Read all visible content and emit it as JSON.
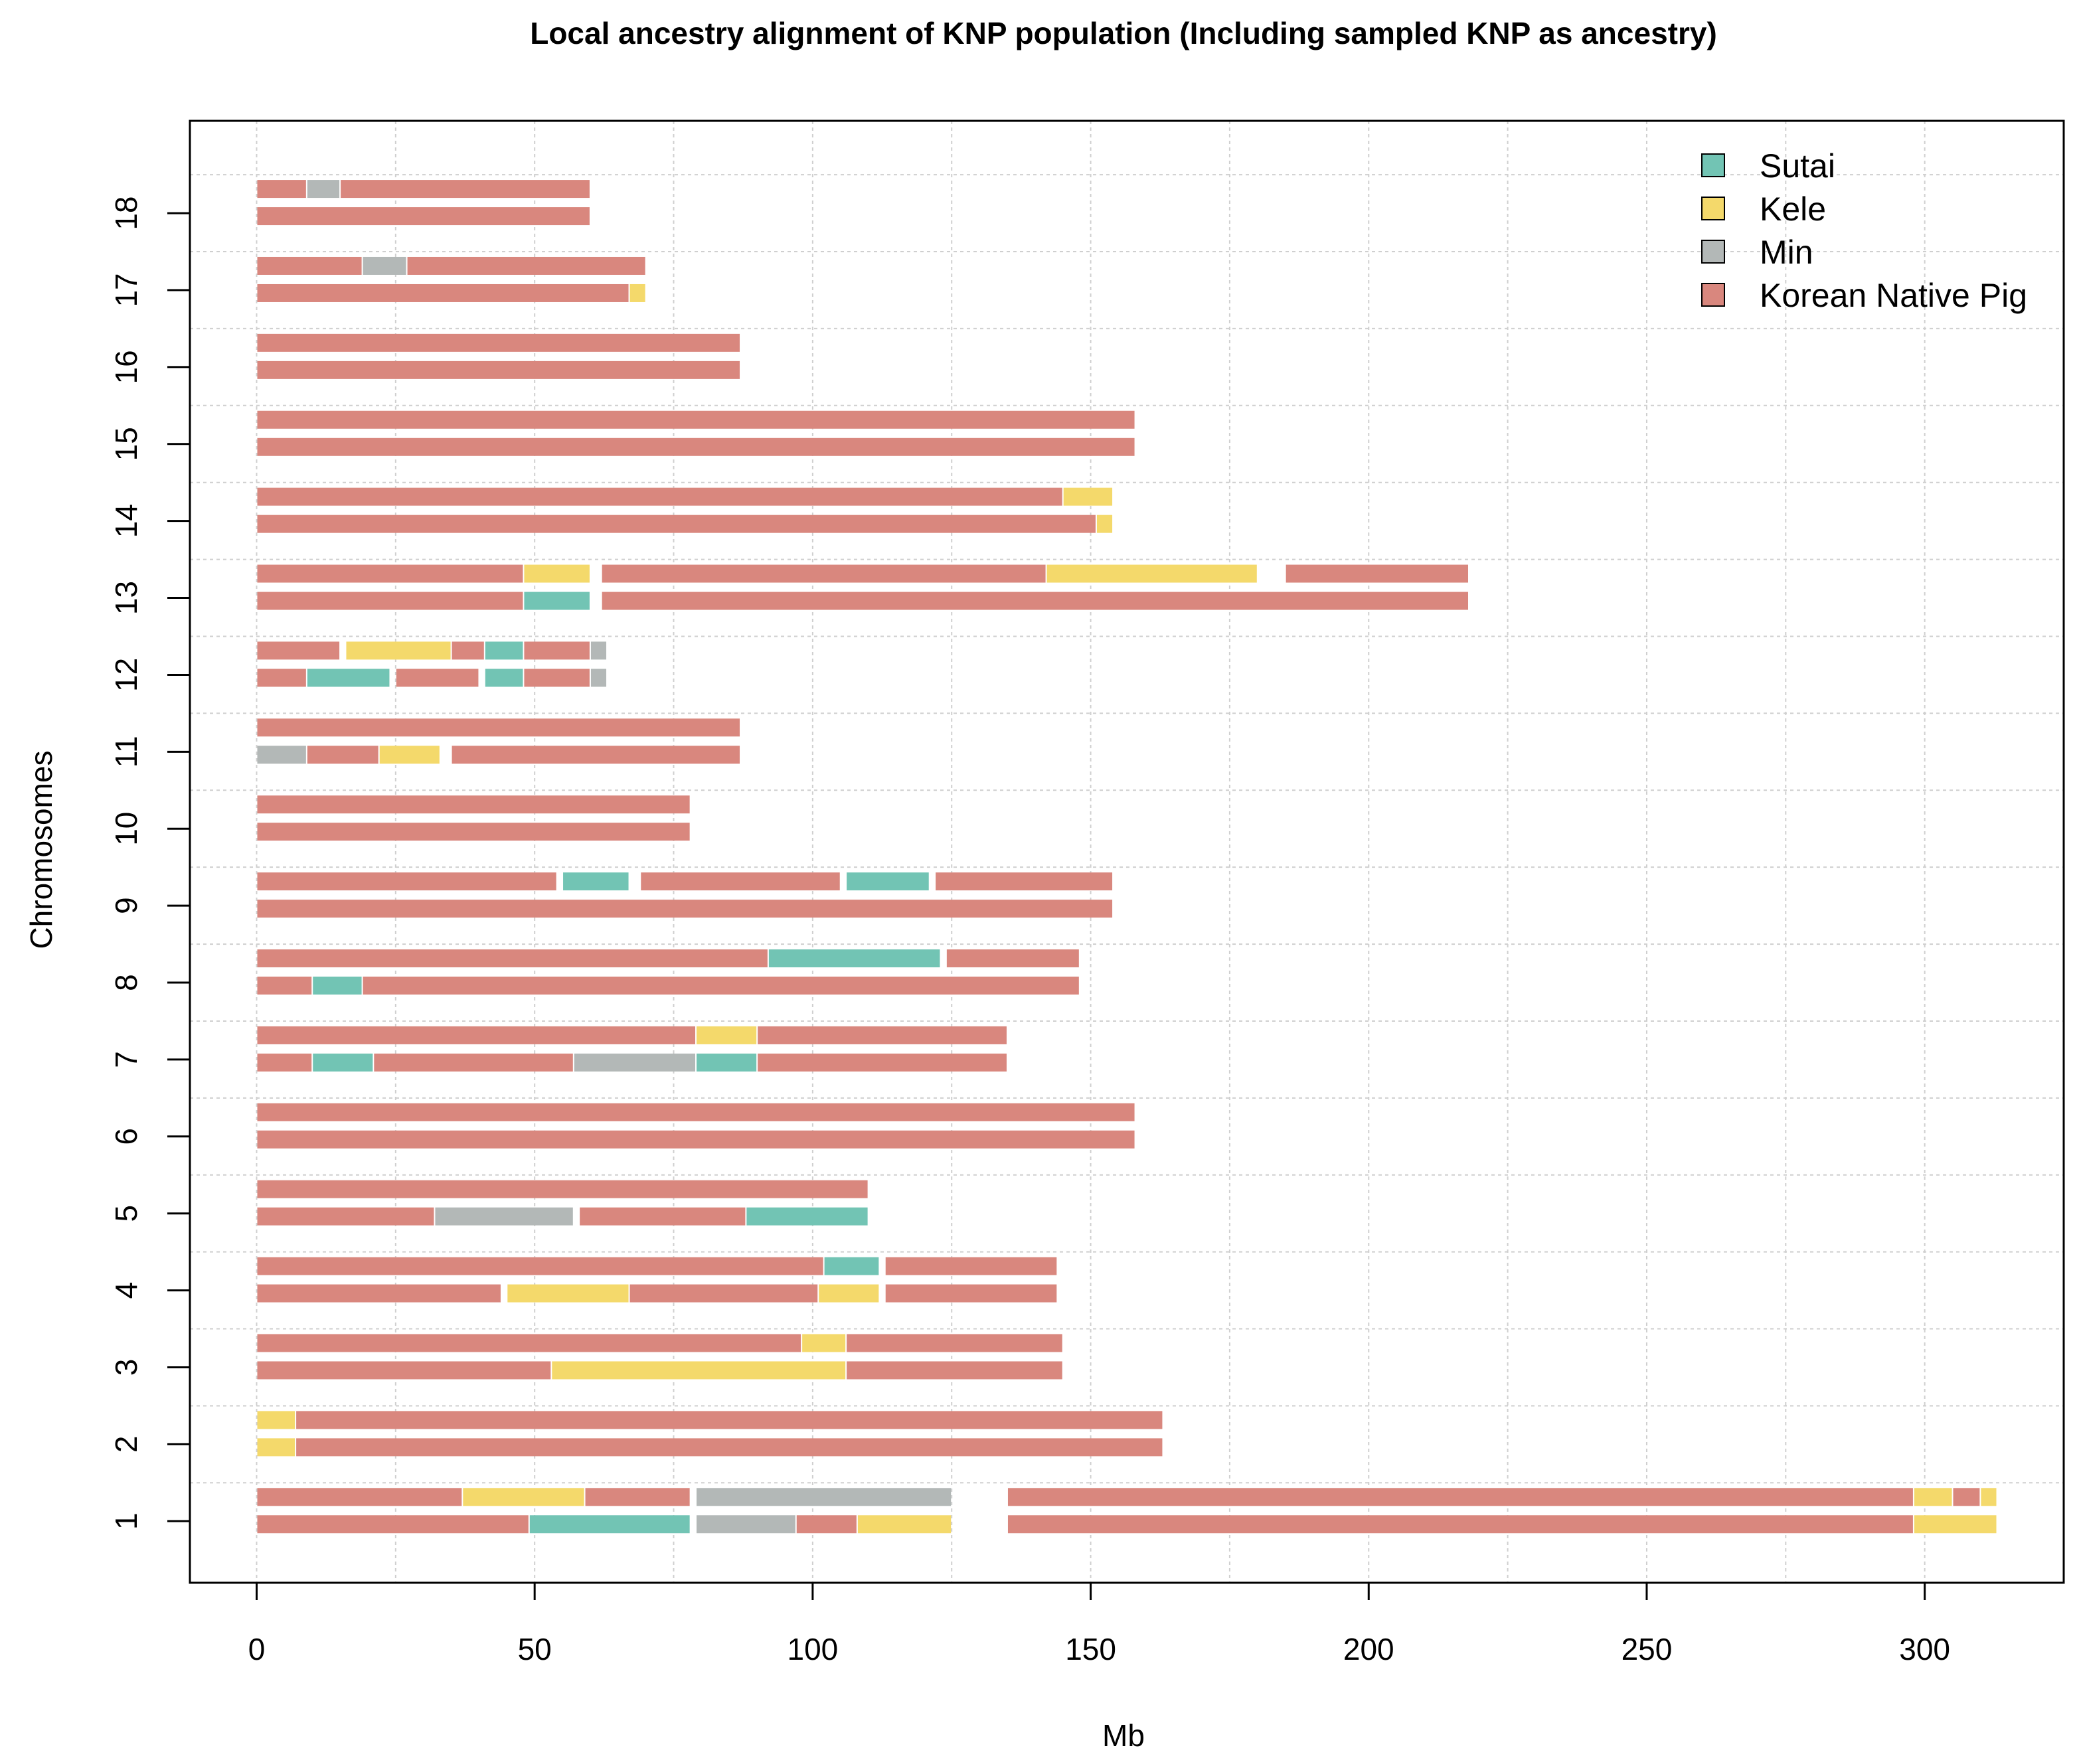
{
  "chart_data": {
    "type": "bar",
    "subtype": "horizontal-segmented-haplotype",
    "title": "Local ancestry alignment of KNP population (Including sampled KNP as ancestry)",
    "xlabel": "Mb",
    "ylabel": "Chromosomes",
    "xlim": [
      -12,
      325
    ],
    "ylim": [
      0.2,
      19.2
    ],
    "xticks": [
      0,
      50,
      100,
      150,
      200,
      250,
      300
    ],
    "yticks": [
      1,
      2,
      3,
      4,
      5,
      6,
      7,
      8,
      9,
      10,
      11,
      12,
      13,
      14,
      15,
      16,
      17,
      18
    ],
    "grid": true,
    "legend_position": "top-right",
    "colors": {
      "Sutai": "#72c4b4",
      "Kele": "#f4d96b",
      "Min": "#b3b8b7",
      "Korean Native Pig": "#d9877e"
    },
    "legend": [
      "Sutai",
      "Kele",
      "Min",
      "Korean Native Pig"
    ],
    "chromosomes": [
      {
        "chr": 1,
        "hap1": [
          [
            0,
            37,
            "Korean Native Pig"
          ],
          [
            37,
            59,
            "Kele"
          ],
          [
            59,
            78,
            "Korean Native Pig"
          ],
          [
            79,
            125,
            "Min"
          ],
          [
            135,
            298,
            "Korean Native Pig"
          ],
          [
            298,
            305,
            "Kele"
          ],
          [
            305,
            310,
            "Korean Native Pig"
          ],
          [
            310,
            313,
            "Kele"
          ]
        ],
        "hap2": [
          [
            0,
            49,
            "Korean Native Pig"
          ],
          [
            49,
            78,
            "Sutai"
          ],
          [
            79,
            97,
            "Min"
          ],
          [
            97,
            108,
            "Korean Native Pig"
          ],
          [
            108,
            125,
            "Kele"
          ],
          [
            135,
            298,
            "Korean Native Pig"
          ],
          [
            298,
            313,
            "Kele"
          ]
        ]
      },
      {
        "chr": 2,
        "hap1": [
          [
            0,
            7,
            "Kele"
          ],
          [
            7,
            163,
            "Korean Native Pig"
          ]
        ],
        "hap2": [
          [
            0,
            7,
            "Kele"
          ],
          [
            7,
            163,
            "Korean Native Pig"
          ]
        ]
      },
      {
        "chr": 3,
        "hap1": [
          [
            0,
            98,
            "Korean Native Pig"
          ],
          [
            98,
            106,
            "Kele"
          ],
          [
            106,
            145,
            "Korean Native Pig"
          ]
        ],
        "hap2": [
          [
            0,
            53,
            "Korean Native Pig"
          ],
          [
            53,
            106,
            "Kele"
          ],
          [
            106,
            145,
            "Korean Native Pig"
          ]
        ]
      },
      {
        "chr": 4,
        "hap1": [
          [
            0,
            102,
            "Korean Native Pig"
          ],
          [
            102,
            112,
            "Sutai"
          ],
          [
            113,
            144,
            "Korean Native Pig"
          ]
        ],
        "hap2": [
          [
            0,
            44,
            "Korean Native Pig"
          ],
          [
            45,
            67,
            "Kele"
          ],
          [
            67,
            101,
            "Korean Native Pig"
          ],
          [
            101,
            112,
            "Kele"
          ],
          [
            113,
            144,
            "Korean Native Pig"
          ]
        ]
      },
      {
        "chr": 5,
        "hap1": [
          [
            0,
            110,
            "Korean Native Pig"
          ]
        ],
        "hap2": [
          [
            0,
            32,
            "Korean Native Pig"
          ],
          [
            32,
            57,
            "Min"
          ],
          [
            58,
            88,
            "Korean Native Pig"
          ],
          [
            88,
            110,
            "Sutai"
          ]
        ]
      },
      {
        "chr": 6,
        "hap1": [
          [
            0,
            158,
            "Korean Native Pig"
          ]
        ],
        "hap2": [
          [
            0,
            158,
            "Korean Native Pig"
          ]
        ]
      },
      {
        "chr": 7,
        "hap1": [
          [
            0,
            79,
            "Korean Native Pig"
          ],
          [
            79,
            90,
            "Kele"
          ],
          [
            90,
            135,
            "Korean Native Pig"
          ]
        ],
        "hap2": [
          [
            0,
            10,
            "Korean Native Pig"
          ],
          [
            10,
            21,
            "Sutai"
          ],
          [
            21,
            57,
            "Korean Native Pig"
          ],
          [
            57,
            79,
            "Min"
          ],
          [
            79,
            90,
            "Sutai"
          ],
          [
            90,
            135,
            "Korean Native Pig"
          ]
        ]
      },
      {
        "chr": 8,
        "hap1": [
          [
            0,
            92,
            "Korean Native Pig"
          ],
          [
            92,
            123,
            "Sutai"
          ],
          [
            124,
            148,
            "Korean Native Pig"
          ]
        ],
        "hap2": [
          [
            0,
            10,
            "Korean Native Pig"
          ],
          [
            10,
            19,
            "Sutai"
          ],
          [
            19,
            148,
            "Korean Native Pig"
          ]
        ]
      },
      {
        "chr": 9,
        "hap1": [
          [
            0,
            54,
            "Korean Native Pig"
          ],
          [
            55,
            67,
            "Sutai"
          ],
          [
            69,
            105,
            "Korean Native Pig"
          ],
          [
            106,
            121,
            "Sutai"
          ],
          [
            122,
            154,
            "Korean Native Pig"
          ]
        ],
        "hap2": [
          [
            0,
            154,
            "Korean Native Pig"
          ]
        ]
      },
      {
        "chr": 10,
        "hap1": [
          [
            0,
            78,
            "Korean Native Pig"
          ]
        ],
        "hap2": [
          [
            0,
            78,
            "Korean Native Pig"
          ]
        ]
      },
      {
        "chr": 11,
        "hap1": [
          [
            0,
            87,
            "Korean Native Pig"
          ]
        ],
        "hap2": [
          [
            0,
            9,
            "Min"
          ],
          [
            9,
            22,
            "Korean Native Pig"
          ],
          [
            22,
            33,
            "Kele"
          ],
          [
            35,
            87,
            "Korean Native Pig"
          ]
        ]
      },
      {
        "chr": 12,
        "hap1": [
          [
            0,
            15,
            "Korean Native Pig"
          ],
          [
            16,
            35,
            "Kele"
          ],
          [
            35,
            41,
            "Korean Native Pig"
          ],
          [
            41,
            48,
            "Sutai"
          ],
          [
            48,
            60,
            "Korean Native Pig"
          ],
          [
            60,
            63,
            "Min"
          ]
        ],
        "hap2": [
          [
            0,
            9,
            "Korean Native Pig"
          ],
          [
            9,
            24,
            "Sutai"
          ],
          [
            25,
            40,
            "Korean Native Pig"
          ],
          [
            41,
            48,
            "Sutai"
          ],
          [
            48,
            60,
            "Korean Native Pig"
          ],
          [
            60,
            63,
            "Min"
          ]
        ]
      },
      {
        "chr": 13,
        "hap1": [
          [
            0,
            48,
            "Korean Native Pig"
          ],
          [
            48,
            60,
            "Kele"
          ],
          [
            62,
            142,
            "Korean Native Pig"
          ],
          [
            142,
            180,
            "Kele"
          ],
          [
            185,
            218,
            "Korean Native Pig"
          ]
        ],
        "hap2": [
          [
            0,
            48,
            "Korean Native Pig"
          ],
          [
            48,
            60,
            "Sutai"
          ],
          [
            62,
            218,
            "Korean Native Pig"
          ]
        ]
      },
      {
        "chr": 14,
        "hap1": [
          [
            0,
            145,
            "Korean Native Pig"
          ],
          [
            145,
            154,
            "Kele"
          ]
        ],
        "hap2": [
          [
            0,
            151,
            "Korean Native Pig"
          ],
          [
            151,
            154,
            "Kele"
          ]
        ]
      },
      {
        "chr": 15,
        "hap1": [
          [
            0,
            158,
            "Korean Native Pig"
          ]
        ],
        "hap2": [
          [
            0,
            158,
            "Korean Native Pig"
          ]
        ]
      },
      {
        "chr": 16,
        "hap1": [
          [
            0,
            87,
            "Korean Native Pig"
          ]
        ],
        "hap2": [
          [
            0,
            87,
            "Korean Native Pig"
          ]
        ]
      },
      {
        "chr": 17,
        "hap1": [
          [
            0,
            19,
            "Korean Native Pig"
          ],
          [
            19,
            27,
            "Min"
          ],
          [
            27,
            70,
            "Korean Native Pig"
          ]
        ],
        "hap2": [
          [
            0,
            67,
            "Korean Native Pig"
          ],
          [
            67,
            70,
            "Kele"
          ]
        ]
      },
      {
        "chr": 18,
        "hap1": [
          [
            0,
            9,
            "Korean Native Pig"
          ],
          [
            9,
            15,
            "Min"
          ],
          [
            15,
            60,
            "Korean Native Pig"
          ]
        ],
        "hap2": [
          [
            0,
            60,
            "Korean Native Pig"
          ]
        ]
      }
    ]
  }
}
